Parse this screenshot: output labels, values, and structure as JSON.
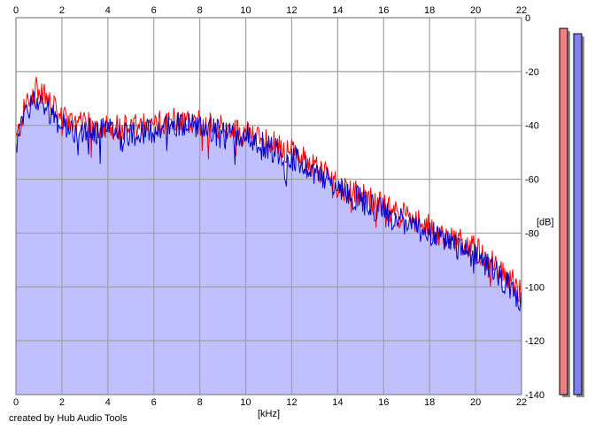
{
  "footer": {
    "credit": "created by Hub Audio Tools"
  },
  "chart_data": {
    "type": "area",
    "xlabel": "[kHz]",
    "ylabel": "[dB]",
    "xlim": [
      0,
      22
    ],
    "ylim": [
      -140,
      0
    ],
    "x_ticks": [
      0,
      2,
      4,
      6,
      8,
      10,
      12,
      14,
      16,
      18,
      20,
      22
    ],
    "y_ticks": [
      0,
      -20,
      -40,
      -60,
      -80,
      -100,
      -120,
      -140
    ],
    "grid": true,
    "colors": {
      "channel_1": "#ff0000",
      "channel_2": "#0000c8",
      "fill": "#c0c0ff",
      "meter_1": "#f08080",
      "meter_2": "#8080f0"
    },
    "x": [
      0,
      0.5,
      1,
      1.5,
      2,
      3,
      4,
      5,
      6,
      7,
      8,
      9,
      10,
      11,
      12,
      13,
      14,
      15,
      16,
      17,
      18,
      19,
      20,
      21,
      22
    ],
    "series": [
      {
        "values": [
          -46,
          -30,
          -26,
          -32,
          -38,
          -40,
          -40,
          -41,
          -40,
          -37,
          -39,
          -41,
          -43,
          -46,
          -50,
          -55,
          -62,
          -66,
          -70,
          -74,
          -78,
          -82,
          -86,
          -92,
          -102
        ]
      },
      {
        "values": [
          -48,
          -33,
          -30,
          -35,
          -40,
          -42,
          -42,
          -43,
          -42,
          -39,
          -40,
          -43,
          -44,
          -48,
          -52,
          -57,
          -63,
          -68,
          -72,
          -76,
          -80,
          -84,
          -89,
          -95,
          -106
        ]
      }
    ],
    "level_meters": [
      {
        "level_db": -2
      },
      {
        "level_db": -4
      }
    ]
  }
}
